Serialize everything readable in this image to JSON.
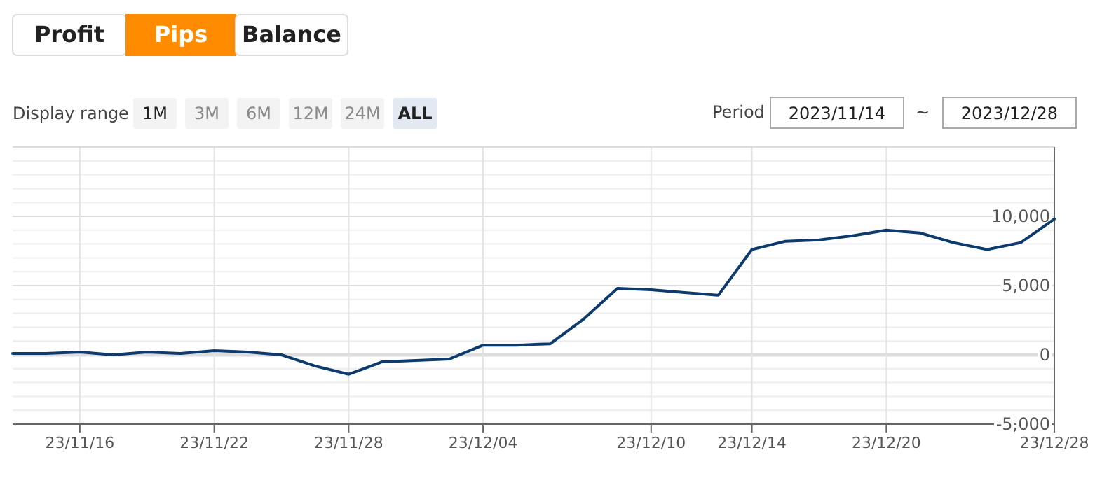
{
  "chart_data": {
    "type": "line",
    "categories": [
      null,
      null,
      "23/11/16",
      null,
      null,
      null,
      "23/11/22",
      null,
      null,
      null,
      "23/11/28",
      null,
      null,
      null,
      "23/12/04",
      null,
      null,
      null,
      null,
      "23/12/10",
      null,
      null,
      "23/12/14",
      null,
      null,
      null,
      "23/12/20",
      null,
      null,
      null,
      null,
      "23/12/28"
    ],
    "series": [
      {
        "color": "#0d3b6e",
        "values": [
          100,
          100,
          200,
          0,
          200,
          100,
          300,
          200,
          0,
          -800,
          -1400,
          -500,
          -400,
          -300,
          700,
          700,
          800,
          2600,
          4800,
          4700,
          4500,
          4300,
          7600,
          8200,
          8300,
          8600,
          9000,
          8800,
          8100,
          7600,
          8100,
          9800
        ]
      }
    ],
    "ylim": [
      -5000,
      15000
    ],
    "yticks": [
      {
        "value": -5000,
        "label": "-5,000"
      },
      {
        "value": -4000,
        "label": null
      },
      {
        "value": -3000,
        "label": null
      },
      {
        "value": -2000,
        "label": null
      },
      {
        "value": -1000,
        "label": null
      },
      {
        "value": 0,
        "label": "0"
      },
      {
        "value": 1000,
        "label": null
      },
      {
        "value": 2000,
        "label": null
      },
      {
        "value": 3000,
        "label": null
      },
      {
        "value": 4000,
        "label": null
      },
      {
        "value": 5000,
        "label": "5,000"
      },
      {
        "value": 6000,
        "label": null
      },
      {
        "value": 7000,
        "label": null
      },
      {
        "value": 8000,
        "label": null
      },
      {
        "value": 9000,
        "label": null
      },
      {
        "value": 10000,
        "label": "10,000"
      },
      {
        "value": 11000,
        "label": null
      },
      {
        "value": 12000,
        "label": null
      },
      {
        "value": 13000,
        "label": null
      },
      {
        "value": 14000,
        "label": null
      }
    ],
    "ref_lines": [
      {
        "axis": "y",
        "value": 0,
        "color": "#dddddd"
      }
    ],
    "grid": true,
    "marker": "none",
    "line_style": "solid",
    "annotations": [
      "Profit",
      "Pips",
      "Balance",
      "Display range",
      "1M",
      "3M",
      "6M",
      "12M",
      "24M",
      "ALL",
      "Period",
      "2023/11/14",
      "~",
      "2023/12/28"
    ]
  }
}
